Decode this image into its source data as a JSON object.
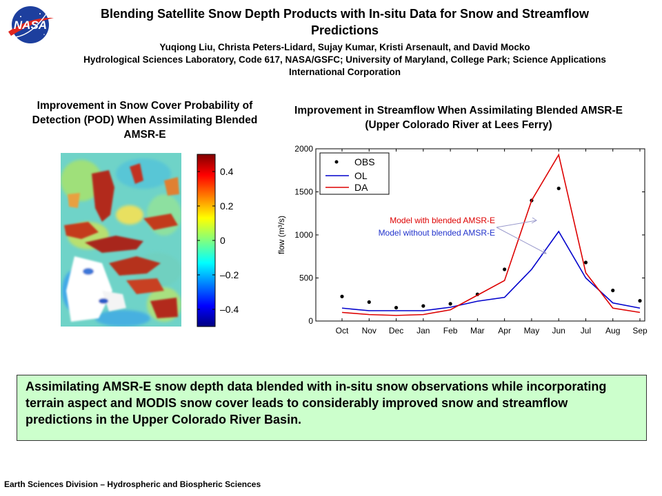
{
  "header": {
    "logo_text": "NASA",
    "title": "Blending Satellite Snow Depth Products with In-situ Data for Snow and Streamflow Predictions",
    "authors": "Yuqiong Liu, Christa Peters-Lidard, Sujay Kumar, Kristi Arsenault, and David Mocko",
    "affiliation": "Hydrological Sciences Laboratory, Code 617, NASA/GSFC; University of Maryland, College Park; Science Applications International Corporation"
  },
  "map_panel": {
    "title": "Improvement in Snow Cover Probability of Detection (POD) When Assimilating Blended AMSR-E",
    "colorbar_ticks": [
      "0.4",
      "0.2",
      "0",
      "–0.2",
      "–0.4"
    ]
  },
  "flow_panel": {
    "title": "Improvement in Streamflow When Assimilating Blended AMSR-E (Upper Colorado River at Lees Ferry)"
  },
  "chart_data": {
    "type": "line",
    "ylabel": "flow (m³/s)",
    "ylim": [
      0,
      2000
    ],
    "yticks": [
      "0",
      "500",
      "1000",
      "1500",
      "2000"
    ],
    "categories": [
      "Oct",
      "Nov",
      "Dec",
      "Jan",
      "Feb",
      "Mar",
      "Apr",
      "May",
      "Jun",
      "Jul",
      "Aug",
      "Sep"
    ],
    "series": [
      {
        "name": "OBS",
        "style": "markers",
        "color": "#000000",
        "values": [
          285,
          220,
          155,
          175,
          200,
          310,
          600,
          1400,
          1540,
          680,
          355,
          235
        ]
      },
      {
        "name": "OL",
        "style": "line",
        "color": "#0000cc",
        "values": [
          150,
          120,
          120,
          120,
          160,
          230,
          275,
          600,
          1040,
          500,
          210,
          150
        ]
      },
      {
        "name": "DA",
        "style": "line",
        "color": "#dd0000",
        "values": [
          100,
          75,
          65,
          75,
          130,
          300,
          470,
          1400,
          1930,
          560,
          150,
          100
        ]
      }
    ],
    "grid": false,
    "legend": "top-left",
    "annotations": [
      {
        "text": "Model with blended AMSR-E",
        "color": "#dd0000"
      },
      {
        "text": "Model without blended AMSR-E",
        "color": "#2233cc"
      }
    ]
  },
  "summary": "Assimilating AMSR-E snow depth data blended with in-situ snow observations while incorporating terrain aspect and MODIS snow cover leads to considerably improved snow and streamflow predictions in the Upper Colorado River Basin.",
  "footer": "Earth Sciences Division – Hydrospheric and Biospheric Sciences",
  "colors": {
    "summary_bg": "#ccffcc",
    "da": "#dd0000",
    "ol": "#0000cc"
  }
}
